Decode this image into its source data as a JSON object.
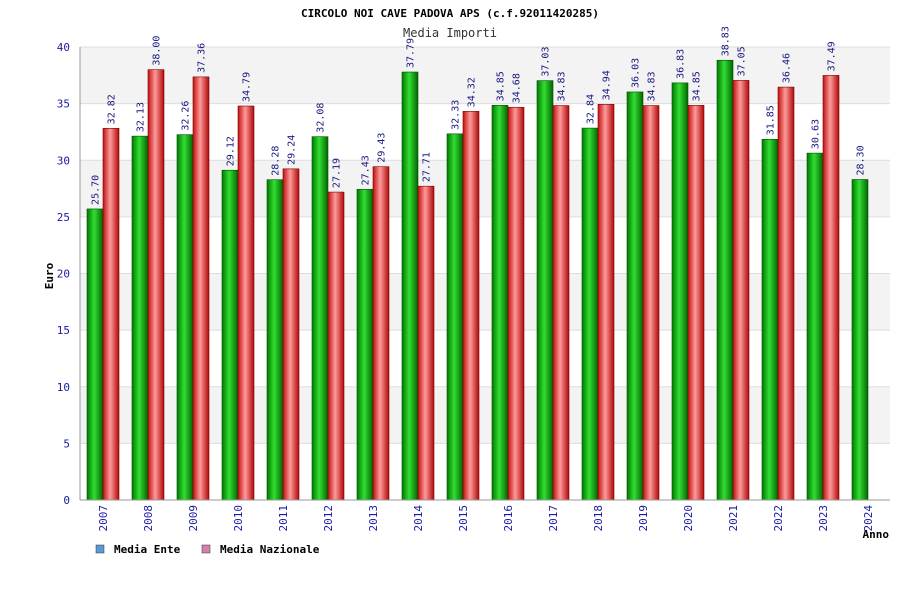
{
  "chart_data": {
    "type": "bar",
    "title": "CIRCOLO NOI CAVE PADOVA APS (c.f.92011420285)",
    "subtitle": "Media Importi",
    "xlabel": "Anno",
    "ylabel": "Euro",
    "ylim": [
      0,
      40
    ],
    "yticks": [
      0,
      5,
      10,
      15,
      20,
      25,
      30,
      35,
      40
    ],
    "categories": [
      "2007",
      "2008",
      "2009",
      "2010",
      "2011",
      "2012",
      "2013",
      "2014",
      "2015",
      "2016",
      "2017",
      "2018",
      "2019",
      "2020",
      "2021",
      "2022",
      "2023",
      "2024"
    ],
    "series": [
      {
        "name": "Media Ente",
        "color": "#00a000",
        "legend_color": "#5b9bd5",
        "values": [
          25.7,
          32.13,
          32.26,
          29.12,
          28.28,
          32.08,
          27.43,
          37.79,
          32.33,
          34.85,
          37.03,
          32.84,
          36.03,
          36.83,
          38.83,
          31.85,
          30.63,
          28.3
        ],
        "labels": [
          "25.70",
          "32.13",
          "32.26",
          "29.12",
          "28.28",
          "32.08",
          "27.43",
          "37.79",
          "32.33",
          "34.85",
          "37.03",
          "32.84",
          "36.03",
          "36.83",
          "38.83",
          "31.85",
          "30.63",
          "28.30"
        ]
      },
      {
        "name": "Media Nazionale",
        "color": "#e02020",
        "legend_color": "#d67fb0",
        "values": [
          32.82,
          38.0,
          37.36,
          34.79,
          29.24,
          27.19,
          29.43,
          27.71,
          34.32,
          34.68,
          34.83,
          34.94,
          34.83,
          34.85,
          37.05,
          36.46,
          37.49,
          null
        ],
        "labels": [
          "32.82",
          "38.00",
          "37.36",
          "34.79",
          "29.24",
          "27.19",
          "29.43",
          "27.71",
          "34.32",
          "34.68",
          "34.83",
          "34.94",
          "34.83",
          "34.85",
          "37.05",
          "36.46",
          "37.49",
          null
        ]
      }
    ],
    "grid": true,
    "legend": "bottom-left"
  }
}
